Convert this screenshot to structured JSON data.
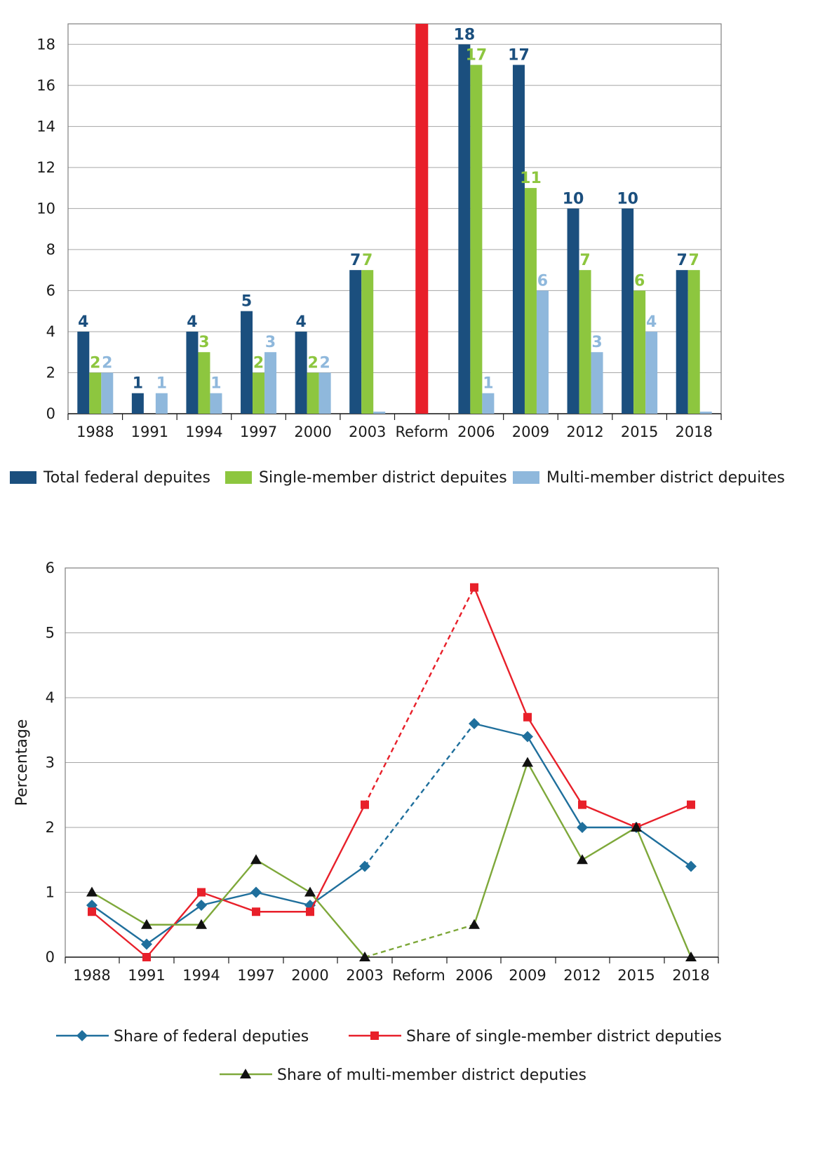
{
  "chart_data": [
    {
      "type": "bar",
      "title": "",
      "xlabel": "",
      "ylabel": "",
      "ylim": [
        0,
        19
      ],
      "yticks": [
        0,
        2,
        4,
        6,
        8,
        10,
        12,
        14,
        16,
        18
      ],
      "grid": true,
      "legend_position": "bottom",
      "categories": [
        "1988",
        "1991",
        "1994",
        "1997",
        "2000",
        "2003",
        "Reform",
        "2006",
        "2009",
        "2012",
        "2015",
        "2018"
      ],
      "series": [
        {
          "name": "Total federal depuites",
          "color": "#1b4f7e",
          "values": [
            4,
            1,
            4,
            5,
            4,
            7,
            null,
            18,
            17,
            10,
            10,
            7
          ],
          "labels": [
            "4",
            "1",
            "4",
            "5",
            "4",
            "7",
            "",
            "18",
            "17",
            "10",
            "10",
            "7"
          ]
        },
        {
          "name": "Single-member district depuites",
          "color": "#8dc63f",
          "values": [
            2,
            0,
            3,
            2,
            2,
            7,
            null,
            17,
            11,
            7,
            6,
            7
          ],
          "labels": [
            "2",
            "",
            "3",
            "2",
            "2",
            "7",
            "",
            "17",
            "11",
            "7",
            "6",
            "7"
          ]
        },
        {
          "name": "Multi-member district depuites",
          "color": "#8fb8dc",
          "values": [
            2,
            1,
            1,
            3,
            2,
            0.1,
            null,
            1,
            6,
            3,
            4,
            0.1
          ],
          "labels": [
            "2",
            "1",
            "1",
            "3",
            "2",
            "",
            "",
            "1",
            "6",
            "3",
            "4",
            ""
          ]
        }
      ],
      "reform_marker": {
        "category": "Reform",
        "value": 19,
        "color": "#e8202a"
      }
    },
    {
      "type": "line",
      "title": "",
      "xlabel": "",
      "ylabel": "Percentage",
      "ylim": [
        0,
        6
      ],
      "yticks": [
        0,
        1,
        2,
        3,
        4,
        5,
        6
      ],
      "grid": true,
      "legend_position": "bottom",
      "x": [
        "1988",
        "1991",
        "1994",
        "1997",
        "2000",
        "2003",
        "Reform",
        "2006",
        "2009",
        "2012",
        "2015",
        "2018"
      ],
      "series": [
        {
          "name": "Share of federal deputies",
          "color": "#1f6f9c",
          "marker": "diamond",
          "values": [
            0.8,
            0.2,
            0.8,
            1.0,
            0.8,
            1.4,
            null,
            3.6,
            3.4,
            2.0,
            2.0,
            1.4
          ]
        },
        {
          "name": "Share of single-member district deputies",
          "color": "#e8202a",
          "marker": "square",
          "values": [
            0.7,
            0.0,
            1.0,
            0.7,
            0.7,
            2.35,
            null,
            5.7,
            3.7,
            2.35,
            2.0,
            2.35
          ]
        },
        {
          "name": "Share of multi-member district deputies",
          "color": "#7ea83a",
          "marker": "triangle",
          "values": [
            1.0,
            0.5,
            0.5,
            1.5,
            1.0,
            0.0,
            null,
            0.5,
            3.0,
            1.5,
            2.0,
            0.0
          ]
        }
      ],
      "dashed_segment": "2003-2006"
    }
  ]
}
